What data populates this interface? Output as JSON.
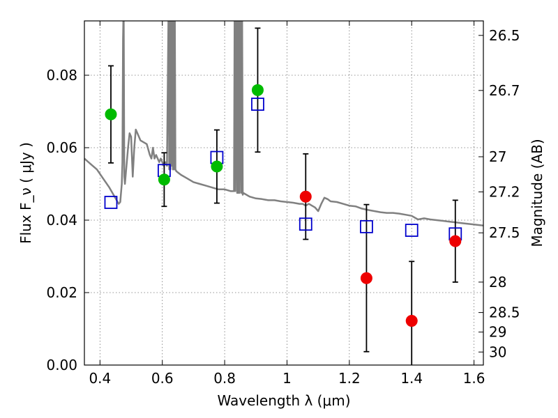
{
  "chart_data": {
    "type": "scatter",
    "xlabel": "Wavelength  λ (μm)",
    "ylabel": "Flux  F_ν  ( μJy )",
    "ylabel_right": "Magnitude (AB)",
    "xlim": [
      0.35,
      1.63
    ],
    "ylim": [
      0.0,
      0.095
    ],
    "grid": true,
    "x_ticks": [
      0.4,
      0.6,
      0.8,
      1.0,
      1.2,
      1.4,
      1.6
    ],
    "x_tick_labels": [
      "0.4",
      "0.6",
      "0.8",
      "1",
      "1.2",
      "1.4",
      "1.6"
    ],
    "y_ticks": [
      0.0,
      0.02,
      0.04,
      0.06,
      0.08
    ],
    "y_tick_labels": [
      "0.00",
      "0.02",
      "0.04",
      "0.06",
      "0.08"
    ],
    "right_ticks": [
      {
        "flux": 0.091,
        "label": "26.5"
      },
      {
        "flux": 0.0758,
        "label": "26.7"
      },
      {
        "flux": 0.0575,
        "label": "27"
      },
      {
        "flux": 0.0478,
        "label": "27.2"
      },
      {
        "flux": 0.0365,
        "label": "27.5"
      },
      {
        "flux": 0.0229,
        "label": "28"
      },
      {
        "flux": 0.0145,
        "label": "28.5"
      },
      {
        "flux": 0.0091,
        "label": "29"
      },
      {
        "flux": 0.0036,
        "label": "30"
      }
    ],
    "series": [
      {
        "kind": "model-spectrum",
        "color": "#808080",
        "x": [
          0.35,
          0.37,
          0.39,
          0.41,
          0.43,
          0.45,
          0.46,
          0.465,
          0.47,
          0.472,
          0.474,
          0.476,
          0.478,
          0.48,
          0.482,
          0.49,
          0.495,
          0.5,
          0.505,
          0.51,
          0.515,
          0.52,
          0.525,
          0.53,
          0.54,
          0.55,
          0.56,
          0.565,
          0.57,
          0.575,
          0.58,
          0.59,
          0.595,
          0.6,
          0.605,
          0.61,
          0.615,
          0.62,
          0.622,
          0.624,
          0.626,
          0.628,
          0.63,
          0.632,
          0.634,
          0.636,
          0.638,
          0.64,
          0.642,
          0.645,
          0.66,
          0.68,
          0.7,
          0.72,
          0.74,
          0.76,
          0.78,
          0.8,
          0.82,
          0.83,
          0.832,
          0.834,
          0.836,
          0.84,
          0.842,
          0.844,
          0.846,
          0.848,
          0.852,
          0.854,
          0.856,
          0.858,
          0.86,
          0.88,
          0.9,
          0.92,
          0.94,
          0.96,
          0.98,
          1.0,
          1.02,
          1.04,
          1.05,
          1.06,
          1.07,
          1.08,
          1.09,
          1.1,
          1.11,
          1.12,
          1.13,
          1.14,
          1.16,
          1.18,
          1.2,
          1.22,
          1.24,
          1.26,
          1.28,
          1.3,
          1.32,
          1.34,
          1.36,
          1.38,
          1.4,
          1.42,
          1.44,
          1.46,
          1.48,
          1.5,
          1.52,
          1.54,
          1.56,
          1.58,
          1.6,
          1.63
        ],
        "y": [
          0.057,
          0.0555,
          0.054,
          0.0515,
          0.049,
          0.046,
          0.0445,
          0.045,
          0.05,
          0.056,
          0.09,
          0.1,
          0.052,
          0.05,
          0.052,
          0.06,
          0.064,
          0.063,
          0.052,
          0.06,
          0.065,
          0.064,
          0.063,
          0.062,
          0.0615,
          0.061,
          0.058,
          0.057,
          0.06,
          0.057,
          0.058,
          0.056,
          0.057,
          0.056,
          0.055,
          0.056,
          0.055,
          0.1,
          0.054,
          0.1,
          0.054,
          0.1,
          0.055,
          0.1,
          0.054,
          0.1,
          0.054,
          0.1,
          0.054,
          0.0535,
          0.0525,
          0.0515,
          0.0505,
          0.05,
          0.0495,
          0.049,
          0.0485,
          0.0485,
          0.048,
          0.048,
          0.1,
          0.048,
          0.1,
          0.0475,
          0.1,
          0.0475,
          0.1,
          0.0475,
          0.1,
          0.0475,
          0.1,
          0.047,
          0.0475,
          0.0465,
          0.046,
          0.0458,
          0.0455,
          0.0455,
          0.0452,
          0.045,
          0.0448,
          0.0445,
          0.0445,
          0.044,
          0.0445,
          0.044,
          0.0435,
          0.0425,
          0.0445,
          0.0462,
          0.0458,
          0.0452,
          0.045,
          0.0445,
          0.044,
          0.0438,
          0.0432,
          0.0428,
          0.0425,
          0.0422,
          0.042,
          0.042,
          0.0418,
          0.0415,
          0.0412,
          0.0402,
          0.0405,
          0.0402,
          0.04,
          0.0398,
          0.0396,
          0.0394,
          0.0392,
          0.039,
          0.0388,
          0.0385
        ]
      },
      {
        "kind": "model-photometry",
        "marker": "square-open",
        "color": "#0000cc",
        "x": [
          0.435,
          0.606,
          0.775,
          0.906,
          1.06,
          1.255,
          1.4,
          1.54
        ],
        "y": [
          0.0449,
          0.0537,
          0.0573,
          0.072,
          0.0389,
          0.0382,
          0.0372,
          0.0362
        ]
      },
      {
        "kind": "detections",
        "marker": "circle",
        "color": "#00bb00",
        "x": [
          0.435,
          0.606,
          0.775,
          0.906
        ],
        "y": [
          0.0692,
          0.0512,
          0.0548,
          0.0759
        ],
        "yerr": [
          0.0134,
          0.0074,
          0.0101,
          0.0171
        ]
      },
      {
        "kind": "detections",
        "marker": "circle",
        "color": "#ee0000",
        "x": [
          1.06,
          1.255,
          1.4,
          1.54
        ],
        "y": [
          0.0465,
          0.024,
          0.0122,
          0.0342
        ],
        "yerr": [
          0.0118,
          0.0203,
          0.0164,
          0.0113
        ]
      }
    ]
  }
}
